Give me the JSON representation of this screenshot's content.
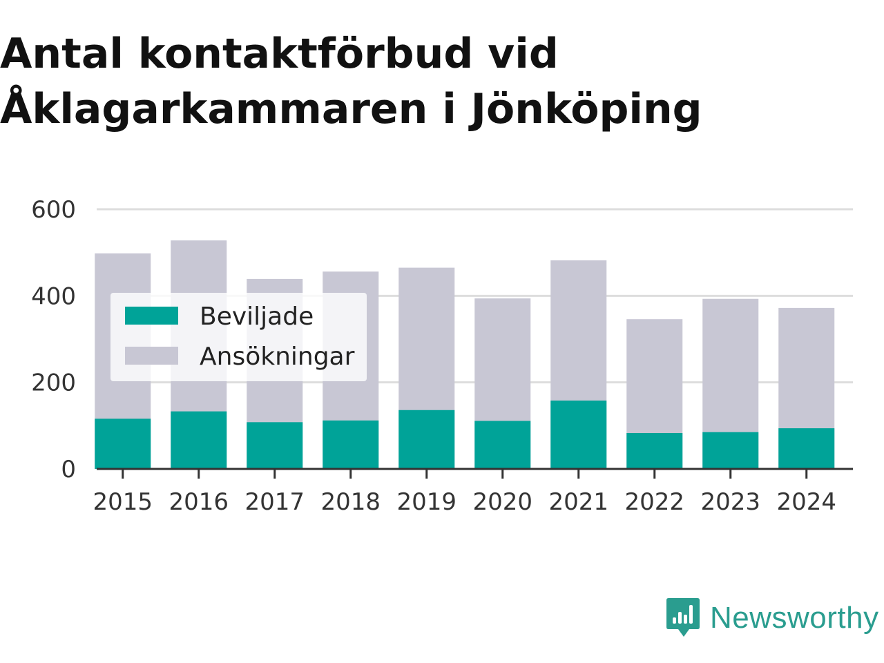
{
  "title_lines": [
    "Antal kontaktförbud vid",
    "Åklagarkammaren i Jönköping"
  ],
  "colors": {
    "granted": "#00a398",
    "applications": "#c8c7d4",
    "grid": "#dddddd",
    "axis": "#333333",
    "brand": "#2a9d8f"
  },
  "chart_data": {
    "type": "bar",
    "stacked": true,
    "categories": [
      "2015",
      "2016",
      "2017",
      "2018",
      "2019",
      "2020",
      "2021",
      "2022",
      "2023",
      "2024"
    ],
    "series": [
      {
        "name": "Beviljade",
        "values": [
          116,
          133,
          108,
          112,
          136,
          111,
          158,
          83,
          85,
          94
        ]
      },
      {
        "name": "Ansökningar",
        "values": [
          498,
          528,
          439,
          456,
          465,
          394,
          482,
          346,
          393,
          372
        ]
      }
    ],
    "ylim": [
      0,
      600
    ],
    "yticks": [
      0,
      200,
      400,
      600
    ],
    "grid": true,
    "legend_position": "top-left"
  },
  "brand": {
    "name": "Newsworthy",
    "logo_icon": "newsworthy-logo-icon"
  }
}
